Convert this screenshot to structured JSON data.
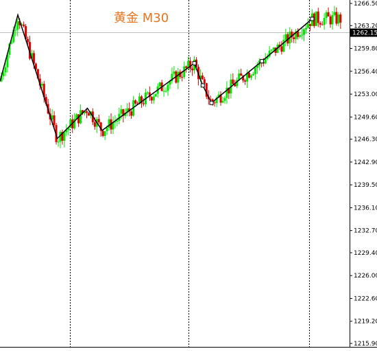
{
  "chart": {
    "title": "黄金 M30",
    "current_price_label": "1262.15",
    "colors": {
      "up": "#00e600",
      "down": "#e00000",
      "zigzag": "#000000",
      "price_line": "#c0c0c0",
      "price_box": "#000000",
      "title": "#e9741c"
    }
  },
  "chart_data": {
    "type": "candlestick",
    "symbol": "黄金",
    "timeframe": "M30",
    "ylim": [
      1215.9,
      1266.5
    ],
    "y_ticks": [
      "1266.50",
      "1263.20",
      "1259.80",
      "1256.40",
      "1253.00",
      "1249.60",
      "1246.30",
      "1242.90",
      "1239.50",
      "1236.10",
      "1232.70",
      "1229.40",
      "1226.00",
      "1222.60",
      "1219.20",
      "1215.90"
    ],
    "current_price": 1262.15,
    "session_separators": [
      0.2,
      0.54,
      0.885
    ],
    "zigzag": [
      {
        "x": 0.0,
        "y": 1254.9
      },
      {
        "x": 0.051,
        "y": 1264.8
      },
      {
        "x": 0.164,
        "y": 1246.4
      },
      {
        "x": 0.25,
        "y": 1250.9
      },
      {
        "x": 0.292,
        "y": 1247.6
      },
      {
        "x": 0.556,
        "y": 1257.6
      },
      {
        "x": 0.58,
        "y": 1254.3
      },
      {
        "x": 0.605,
        "y": 1251.7
      },
      {
        "x": 0.749,
        "y": 1257.9
      },
      {
        "x": 0.893,
        "y": 1264.2
      }
    ],
    "zigzag_markers": [
      0.556,
      0.58,
      0.605,
      0.749,
      0.893
    ],
    "candles": []
  }
}
